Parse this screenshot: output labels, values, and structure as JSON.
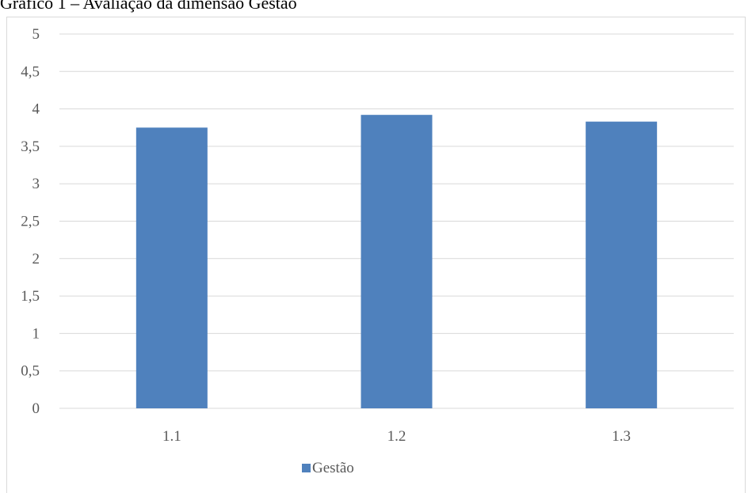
{
  "caption": "Gráfico 1 – Avaliação da dimensão  Gestão",
  "chart_data": {
    "type": "bar",
    "categories": [
      "1.1",
      "1.2",
      "1.3"
    ],
    "series": [
      {
        "name": "Gestão",
        "values": [
          3.75,
          3.92,
          3.83
        ],
        "color": "#4f81bd"
      }
    ],
    "ylim": [
      0,
      5
    ],
    "yticks": [
      0,
      0.5,
      1,
      1.5,
      2,
      2.5,
      3,
      3.5,
      4,
      4.5,
      5
    ],
    "ytick_labels": [
      "0",
      "0,5",
      "1",
      "1,5",
      "2",
      "2,5",
      "3",
      "3,5",
      "4",
      "4,5",
      "5"
    ],
    "grid": true,
    "legend_position": "bottom",
    "title": "",
    "xlabel": "",
    "ylabel": ""
  }
}
